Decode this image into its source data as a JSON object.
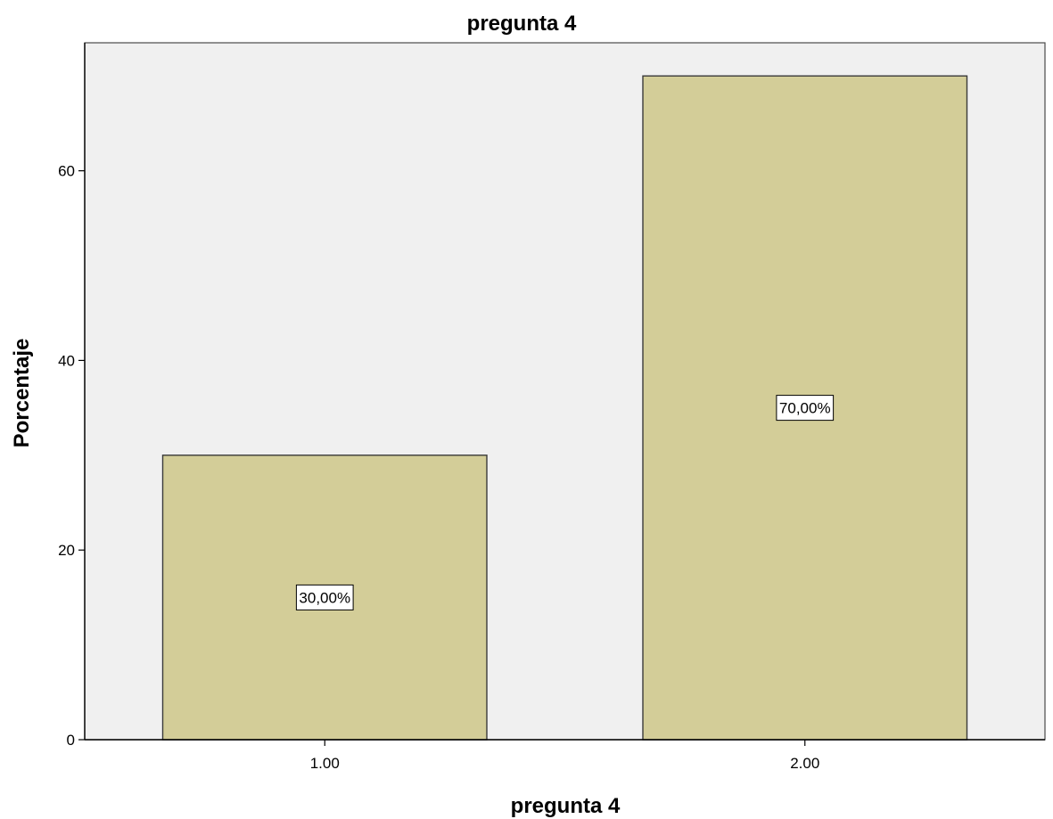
{
  "chart_data": {
    "type": "bar",
    "title": "pregunta 4",
    "xlabel": "pregunta 4",
    "ylabel": "Porcentaje",
    "categories": [
      "1.00",
      "2.00"
    ],
    "values": [
      30,
      70
    ],
    "data_labels": [
      "30,00%",
      "70,00%"
    ],
    "ylim": [
      0,
      73.5
    ],
    "yticks": [
      0,
      20,
      40,
      60
    ],
    "grid": false,
    "legend": "none",
    "colors": {
      "bar_fill": "#d3cd98",
      "bar_stroke": "#3a3a3a",
      "plot_background": "#f0f0f0",
      "page_background": "#ffffff"
    }
  }
}
